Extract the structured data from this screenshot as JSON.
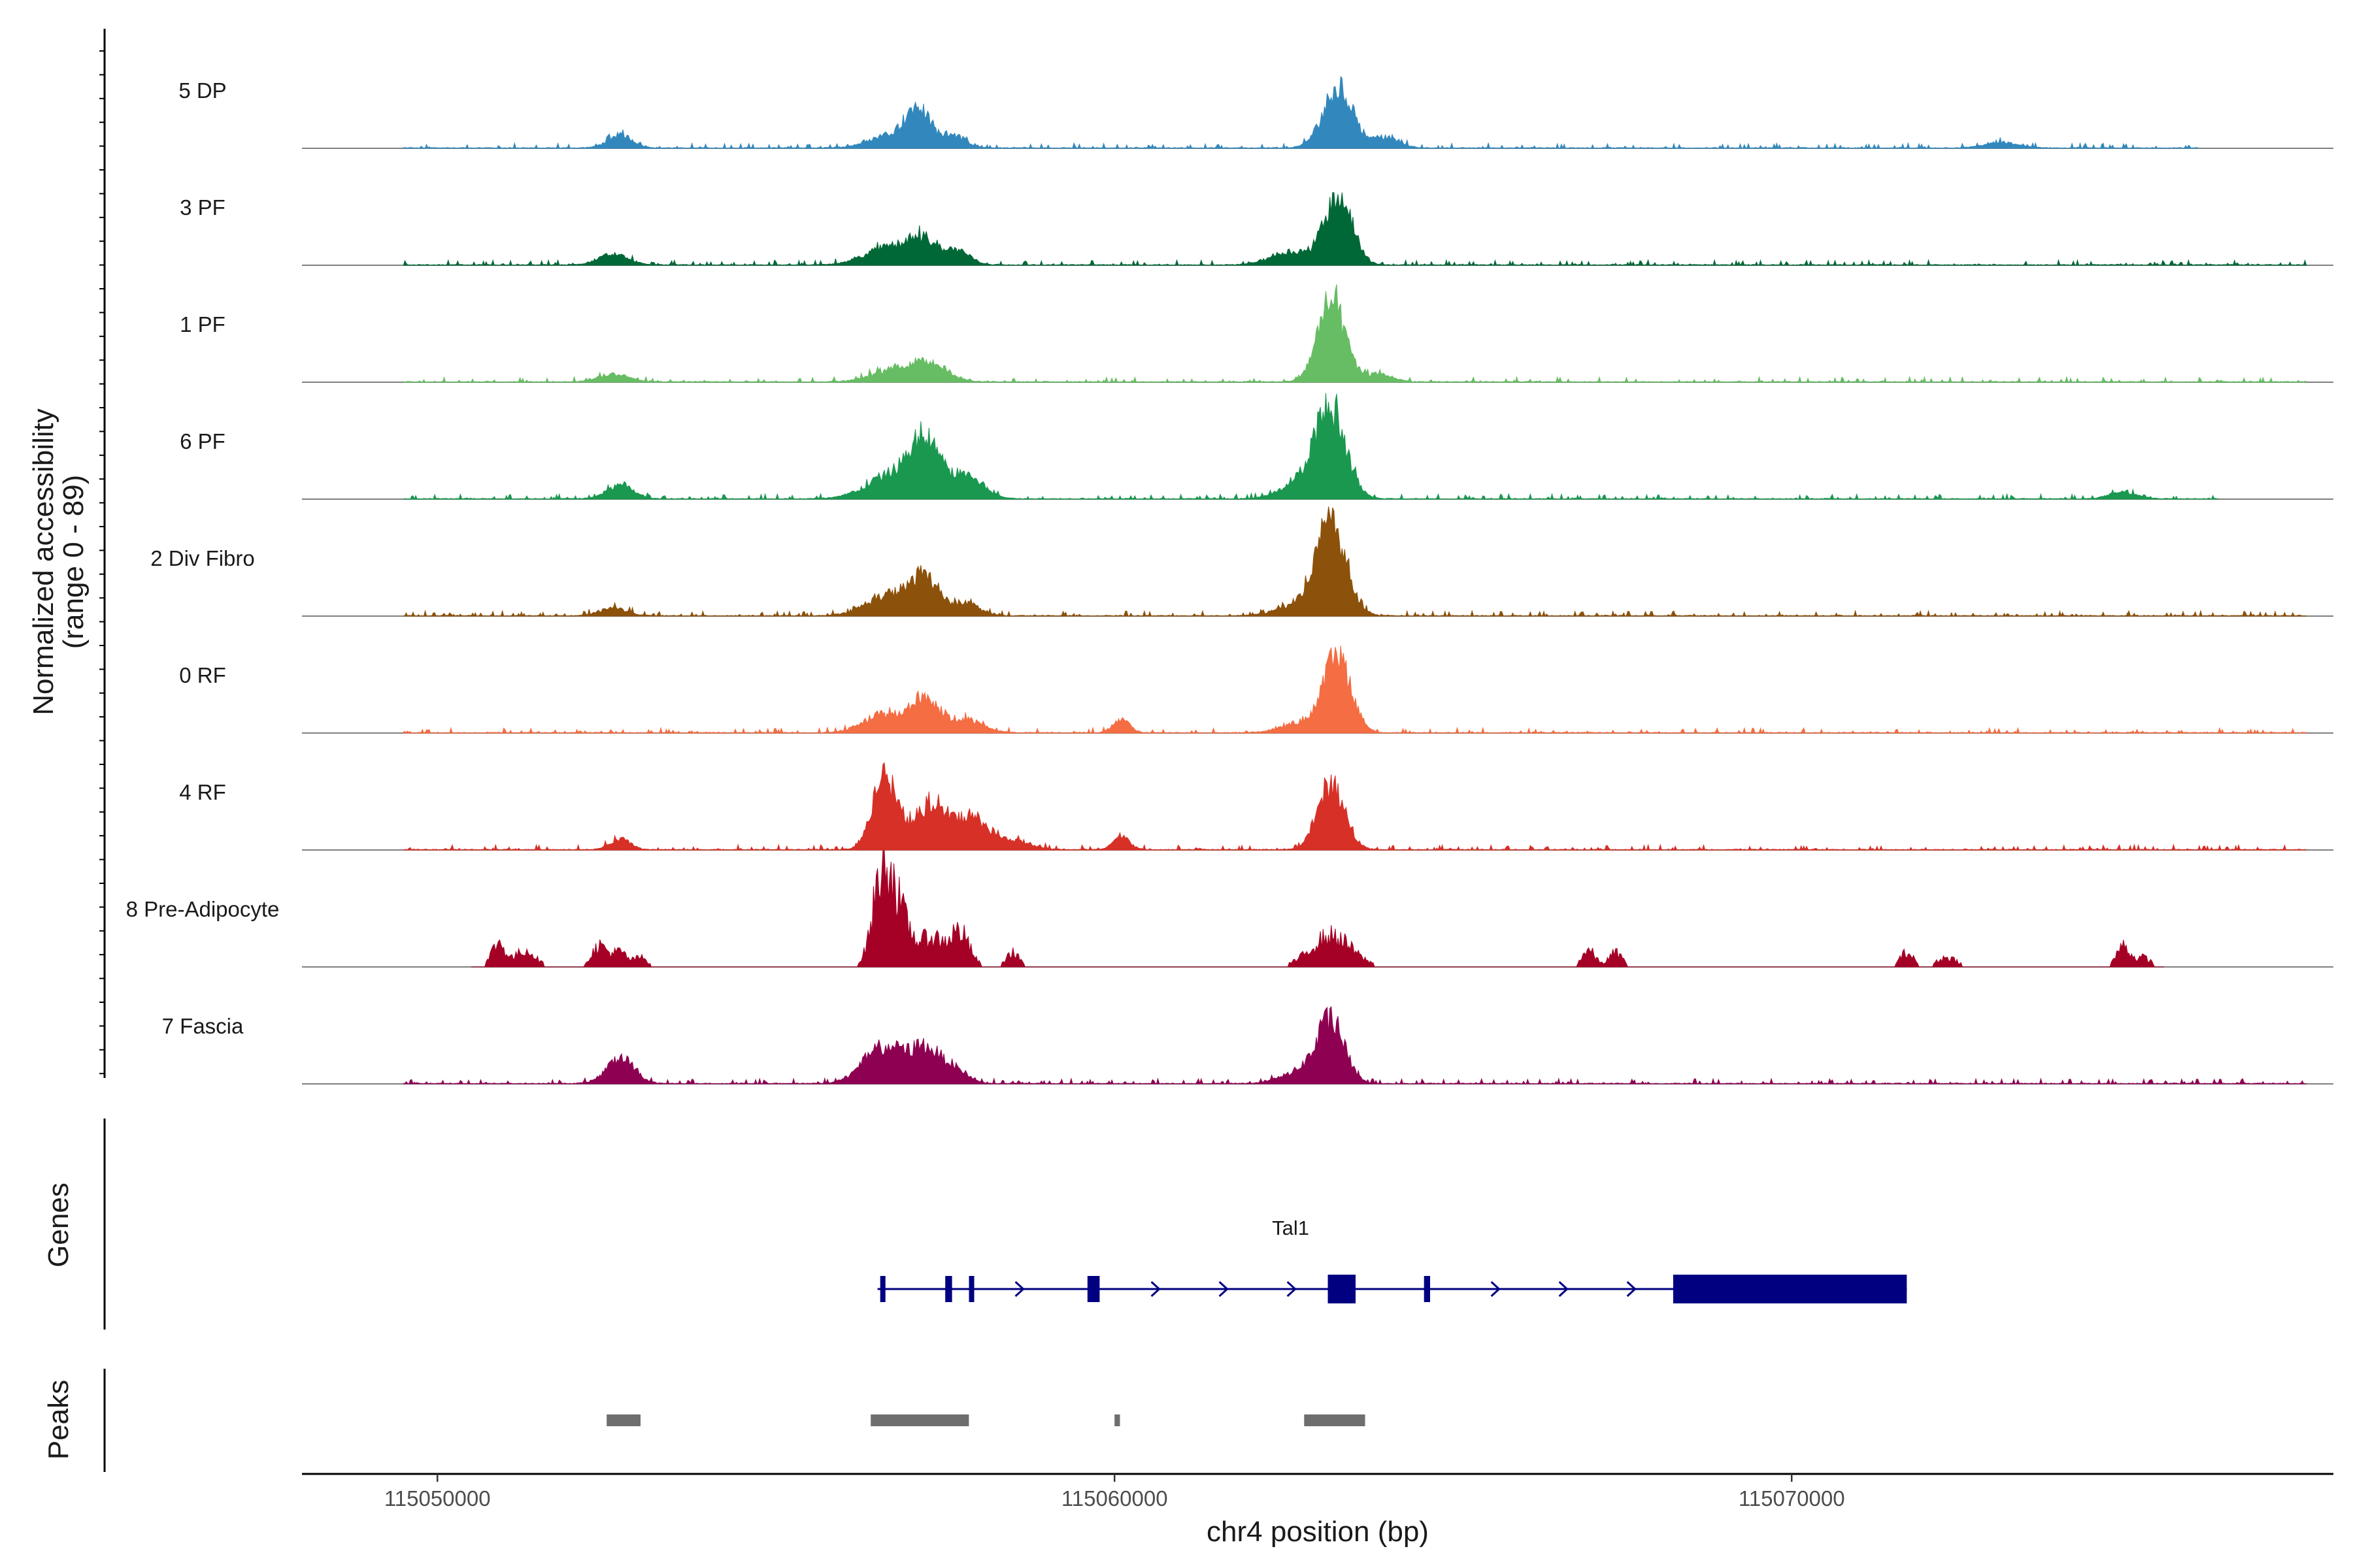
{
  "chart_data": {
    "type": "area",
    "title": "",
    "xlabel": "chr4 position (bp)",
    "xlim": [
      115048000,
      115078000
    ],
    "x_ticks": [
      115050000,
      115060000,
      115070000
    ],
    "x_tick_labels": [
      "115050000",
      "115060000",
      "115070000"
    ],
    "accessibility_ylabel": "Normalized accessibility",
    "accessibility_range_label": "(range 0 - 89)",
    "ylim": [
      0,
      89
    ],
    "genes_label": "Genes",
    "peaks_label": "Peaks",
    "tracks": [
      {
        "name": "5 DP",
        "color": "#3288BD",
        "noise": [
          115049500,
          115076000
        ],
        "peaks": [
          [
            115052700,
            10,
            180
          ],
          [
            115056800,
            12,
            350
          ],
          [
            115057100,
            24,
            160
          ],
          [
            115057600,
            10,
            180
          ],
          [
            115063300,
            45,
            220
          ],
          [
            115064000,
            8,
            200
          ],
          [
            115073100,
            4,
            250
          ]
        ]
      },
      {
        "name": "3 PF",
        "color": "#006837",
        "noise": [
          115049500,
          115077600
        ],
        "peaks": [
          [
            115052600,
            8,
            220
          ],
          [
            115056700,
            14,
            350
          ],
          [
            115057200,
            16,
            220
          ],
          [
            115057700,
            10,
            180
          ],
          [
            115063300,
            55,
            200
          ],
          [
            115062600,
            10,
            300
          ]
        ]
      },
      {
        "name": "1 PF",
        "color": "#66BD63",
        "noise": [
          115049500,
          115077600
        ],
        "peaks": [
          [
            115052600,
            6,
            220
          ],
          [
            115056800,
            10,
            350
          ],
          [
            115057300,
            12,
            250
          ],
          [
            115063200,
            62,
            200
          ],
          [
            115063900,
            6,
            200
          ]
        ]
      },
      {
        "name": "6 PF",
        "color": "#1A9850",
        "noise": [
          115049500,
          115076300
        ],
        "peaks": [
          [
            115052700,
            10,
            200
          ],
          [
            115056800,
            20,
            400
          ],
          [
            115057200,
            36,
            200
          ],
          [
            115057800,
            18,
            250
          ],
          [
            115063200,
            64,
            220
          ],
          [
            115062800,
            14,
            300
          ],
          [
            115074900,
            5,
            200
          ]
        ]
      },
      {
        "name": "2 Div Fibro",
        "color": "#8C510A",
        "noise": [
          115049500,
          115077600
        ],
        "peaks": [
          [
            115052600,
            6,
            200
          ],
          [
            115056700,
            16,
            350
          ],
          [
            115057200,
            26,
            200
          ],
          [
            115057800,
            10,
            200
          ],
          [
            115063200,
            70,
            220
          ],
          [
            115062700,
            8,
            300
          ]
        ]
      },
      {
        "name": "0 RF",
        "color": "#F46D43",
        "noise": [
          115049500,
          115077600
        ],
        "peaks": [
          [
            115056600,
            14,
            300
          ],
          [
            115057200,
            26,
            200
          ],
          [
            115057800,
            10,
            250
          ],
          [
            115060100,
            10,
            120
          ],
          [
            115063300,
            56,
            200
          ],
          [
            115062800,
            8,
            300
          ]
        ]
      },
      {
        "name": "4 RF",
        "color": "#D73027",
        "noise": [
          115049500,
          115077600
        ],
        "peaks": [
          [
            115052700,
            8,
            150
          ],
          [
            115056600,
            56,
            180
          ],
          [
            115057300,
            36,
            250
          ],
          [
            115057900,
            22,
            200
          ],
          [
            115058400,
            8,
            300
          ],
          [
            115060100,
            10,
            120
          ],
          [
            115063200,
            50,
            200
          ]
        ]
      },
      {
        "name": "8 Pre-Adipocyte",
        "color": "#A50026",
        "sparse": true,
        "noise": [
          115050500,
          115075500
        ],
        "peaks": [
          [
            115050900,
            20,
            100
          ],
          [
            115051300,
            14,
            150
          ],
          [
            115052400,
            18,
            120
          ],
          [
            115052700,
            12,
            100
          ],
          [
            115053000,
            8,
            100
          ],
          [
            115056600,
            89,
            150
          ],
          [
            115056900,
            30,
            150
          ],
          [
            115057300,
            24,
            150
          ],
          [
            115057700,
            30,
            150
          ],
          [
            115058500,
            12,
            100
          ],
          [
            115063200,
            26,
            300
          ],
          [
            115067000,
            14,
            100
          ],
          [
            115067400,
            12,
            100
          ],
          [
            115071700,
            12,
            100
          ],
          [
            115072300,
            8,
            150
          ],
          [
            115074900,
            18,
            100
          ],
          [
            115075200,
            8,
            100
          ]
        ]
      },
      {
        "name": "7 Fascia",
        "color": "#8E0152",
        "noise": [
          115049500,
          115077600
        ],
        "peaks": [
          [
            115052700,
            20,
            200
          ],
          [
            115056600,
            28,
            300
          ],
          [
            115057200,
            24,
            200
          ],
          [
            115057600,
            12,
            200
          ],
          [
            115063200,
            44,
            200
          ],
          [
            115062800,
            10,
            300
          ]
        ]
      }
    ],
    "gene": {
      "name": "Tal1",
      "strand": "+",
      "start": 115056500,
      "end": 115071700,
      "exons": [
        [
          115056540,
          115056560
        ],
        [
          115057500,
          115057600
        ],
        [
          115057850,
          115057890
        ],
        [
          115059600,
          115059780
        ],
        [
          115063150,
          115063560
        ],
        [
          115064570,
          115064660
        ],
        [
          115068250,
          115071700
        ]
      ],
      "color": "#000080"
    },
    "peaks": [
      [
        115052500,
        115053000
      ],
      [
        115056400,
        115057850
      ],
      [
        115060000,
        115060080
      ],
      [
        115062800,
        115063700
      ]
    ],
    "peak_color": "#6E6E6E"
  }
}
